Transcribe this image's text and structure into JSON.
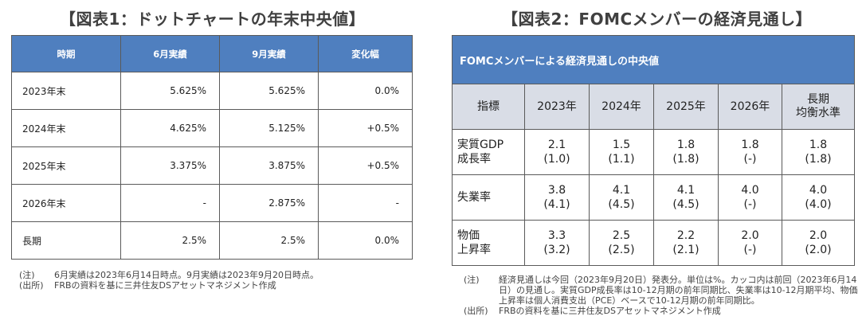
{
  "table1": {
    "title": "【図表1：ドットチャートの年末中央値】",
    "headers": [
      "時期",
      "6月実績",
      "9月実績",
      "変化幅"
    ],
    "rows": [
      [
        "2023年末",
        "5.625%",
        "5.625%",
        "0.0%"
      ],
      [
        "2024年末",
        "4.625%",
        "5.125%",
        "+0.5%"
      ],
      [
        "2025年末",
        "3.375%",
        "3.875%",
        "+0.5%"
      ],
      [
        "2026年末",
        "-",
        "2.875%",
        "-"
      ],
      [
        "長期",
        "2.5%",
        "2.5%",
        "0.0%"
      ]
    ],
    "notes": [
      {
        "label": "(注)",
        "text": "6月実績は2023年6月14日時点。9月実績は2023年9月20日時点。"
      },
      {
        "label": "(出所)",
        "text": "FRBの資料を基に三井住友DSアセットマネジメント作成"
      }
    ]
  },
  "table2": {
    "title": "【図表2：FOMCメンバーの経済見通し】",
    "banner": "FOMCメンバーによる経済見通しの中央値",
    "headers": [
      "指標",
      "2023年",
      "2024年",
      "2025年",
      "2026年",
      "長期\n均衡水準"
    ],
    "rows": [
      {
        "label": "実質GDP\n成長率",
        "cells": [
          [
            "2.1",
            "(1.0)"
          ],
          [
            "1.5",
            "(1.1)"
          ],
          [
            "1.8",
            "(1.8)"
          ],
          [
            "1.8",
            "(-)"
          ],
          [
            "1.8",
            "(1.8)"
          ]
        ]
      },
      {
        "label": "失業率",
        "cells": [
          [
            "3.8",
            "(4.1)"
          ],
          [
            "4.1",
            "(4.5)"
          ],
          [
            "4.1",
            "(4.5)"
          ],
          [
            "4.0",
            "(-)"
          ],
          [
            "4.0",
            "(4.0)"
          ]
        ]
      },
      {
        "label": "物価\n上昇率",
        "cells": [
          [
            "3.3",
            "(3.2)"
          ],
          [
            "2.5",
            "(2.5)"
          ],
          [
            "2.2",
            "(2.1)"
          ],
          [
            "2.0",
            "(-)"
          ],
          [
            "2.0",
            "(2.0)"
          ]
        ]
      }
    ],
    "notes": [
      {
        "label": "(注)",
        "text": "経済見通しは今回（2023年9月20日）発表分。単位は%。カッコ内は前回（2023年6月14日）の見通し。実質GDP成長率は10-12月期の前年同期比、失業率は10-12月期平均、物価上昇率は個人消費支出（PCE）ベースで10-12月期の前年同期比。"
      },
      {
        "label": "(出所)",
        "text": "FRBの資料を基に三井住友DSアセットマネジメント作成"
      }
    ]
  }
}
